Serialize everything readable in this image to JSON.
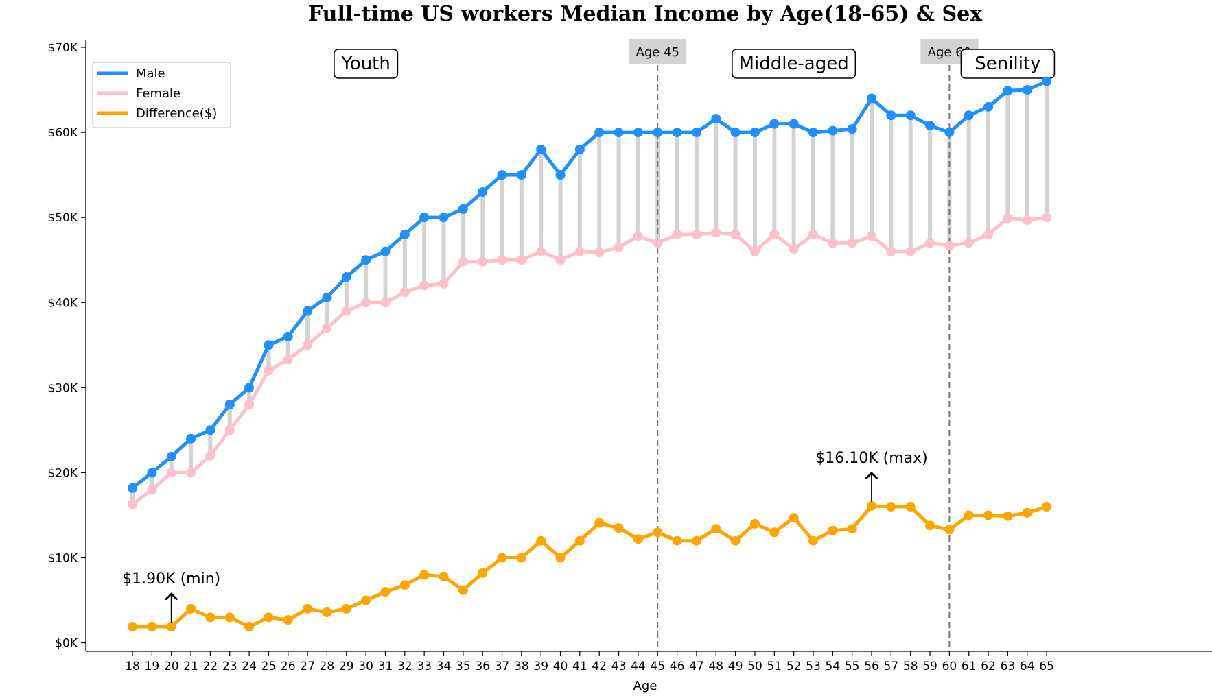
{
  "chart_data": {
    "type": "line",
    "title": "Full-time US workers Median Income by Age(18-65) & Sex",
    "xlabel": "Age",
    "ylabel": "",
    "x": [
      18,
      19,
      20,
      21,
      22,
      23,
      24,
      25,
      26,
      27,
      28,
      29,
      30,
      31,
      32,
      33,
      34,
      35,
      36,
      37,
      38,
      39,
      40,
      41,
      42,
      43,
      44,
      45,
      46,
      47,
      48,
      49,
      50,
      51,
      52,
      53,
      54,
      55,
      56,
      57,
      58,
      59,
      60,
      61,
      62,
      63,
      64,
      65
    ],
    "ylim": [
      -1000,
      70000
    ],
    "yticks": [
      0,
      10000,
      20000,
      30000,
      40000,
      50000,
      60000,
      70000
    ],
    "ytick_labels": [
      "$0K",
      "$10K",
      "$20K",
      "$30K",
      "$40K",
      "$50K",
      "$60K",
      "$70K"
    ],
    "grid": false,
    "legend_position": "upper-left",
    "series": [
      {
        "name": "Male",
        "color": "#1e90ff",
        "values": [
          18200,
          20000,
          21900,
          24000,
          25000,
          28000,
          30000,
          35000,
          36000,
          39000,
          40600,
          43000,
          45000,
          46000,
          48000,
          50000,
          50000,
          51000,
          53000,
          55000,
          55000,
          58000,
          55000,
          58000,
          60000,
          60000,
          60000,
          60000,
          60000,
          60000,
          61600,
          60000,
          60000,
          61000,
          61000,
          60000,
          60200,
          60400,
          64000,
          62000,
          62000,
          60800,
          60000,
          62000,
          63000,
          64900,
          65000,
          66000
        ]
      },
      {
        "name": "Female",
        "color": "#ffc0cb",
        "values": [
          16300,
          18000,
          20000,
          20000,
          22000,
          25000,
          28000,
          32000,
          33300,
          35000,
          37000,
          39000,
          40000,
          40000,
          41200,
          42000,
          42200,
          44800,
          44800,
          45000,
          45000,
          46000,
          45000,
          46000,
          45900,
          46500,
          47800,
          47000,
          48000,
          48000,
          48200,
          48000,
          46000,
          48000,
          46300,
          48000,
          47000,
          47000,
          47800,
          46000,
          46000,
          47000,
          46700,
          47000,
          48000,
          49900,
          49700,
          50000
        ]
      },
      {
        "name": "Difference($)",
        "color": "#ffa500",
        "values": [
          1900,
          1900,
          1900,
          4000,
          3000,
          3000,
          1900,
          3000,
          2700,
          4000,
          3600,
          4000,
          5000,
          6000,
          6800,
          8000,
          7800,
          6200,
          8200,
          10000,
          10000,
          12000,
          10000,
          12000,
          14100,
          13500,
          12200,
          13000,
          12000,
          12000,
          13400,
          12000,
          14000,
          13000,
          14700,
          12000,
          13200,
          13400,
          16100,
          16000,
          16000,
          13800,
          13300,
          15000,
          15000,
          14900,
          15300,
          16000
        ]
      }
    ],
    "vertical_lines": [
      {
        "x": 45,
        "label": "Age 45"
      },
      {
        "x": 60,
        "label": "Age 60"
      }
    ],
    "regions": [
      {
        "label": "Youth",
        "x_center": 30
      },
      {
        "label": "Middle-aged",
        "x_center": 52
      },
      {
        "label": "Senility",
        "x_center": 63
      }
    ],
    "annotations": [
      {
        "text": "$1.90K (min)",
        "x": 20,
        "y": 1900
      },
      {
        "text": "$16.10K (max)",
        "x": 56,
        "y": 16100
      }
    ]
  }
}
